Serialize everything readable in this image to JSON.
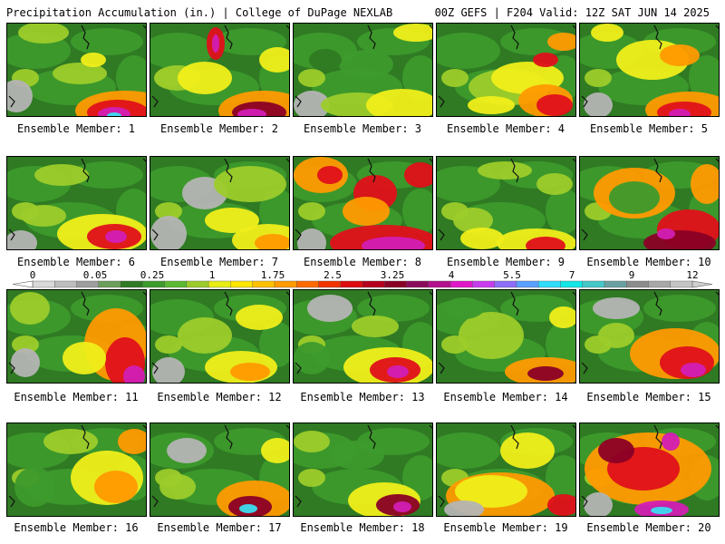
{
  "header": {
    "left_title": "Precipitation Accumulation (in.) | College of DuPage NEXLAB",
    "right_title": "00Z GEFS | F204 Valid: 12Z SAT JUN 14 2025"
  },
  "members": [
    {
      "label": "Ensemble Member: 1"
    },
    {
      "label": "Ensemble Member: 2"
    },
    {
      "label": "Ensemble Member: 3"
    },
    {
      "label": "Ensemble Member: 4"
    },
    {
      "label": "Ensemble Member: 5"
    },
    {
      "label": "Ensemble Member: 6"
    },
    {
      "label": "Ensemble Member: 7"
    },
    {
      "label": "Ensemble Member: 8"
    },
    {
      "label": "Ensemble Member: 9"
    },
    {
      "label": "Ensemble Member: 10"
    },
    {
      "label": "Ensemble Member: 11"
    },
    {
      "label": "Ensemble Member: 12"
    },
    {
      "label": "Ensemble Member: 13"
    },
    {
      "label": "Ensemble Member: 14"
    },
    {
      "label": "Ensemble Member: 15"
    },
    {
      "label": "Ensemble Member: 16"
    },
    {
      "label": "Ensemble Member: 17"
    },
    {
      "label": "Ensemble Member: 18"
    },
    {
      "label": "Ensemble Member: 19"
    },
    {
      "label": "Ensemble Member: 20"
    }
  ],
  "colorbar": {
    "labels": [
      "0",
      "0.05",
      "0.25",
      "1",
      "1.75",
      "2.5",
      "3.25",
      "4",
      "5.5",
      "7",
      "9",
      "12"
    ],
    "colors": [
      "#d9d9d9",
      "#bdbdbd",
      "#9e9e9e",
      "#6b9e5a",
      "#2f7a23",
      "#3d9a2c",
      "#5cb832",
      "#9ccc2a",
      "#e8ee14",
      "#ffe600",
      "#ffc000",
      "#ff9a00",
      "#ff6a00",
      "#f23200",
      "#dd0a10",
      "#b4001e",
      "#8a0026",
      "#8c0a5a",
      "#b4108c",
      "#e018c8",
      "#c83cf0",
      "#8c6ef8",
      "#5aa0ff",
      "#30dcff",
      "#12e6e6",
      "#44c8c8",
      "#6aa0a0",
      "#8c8c8c",
      "#a8a8a8",
      "#c4c4c4"
    ]
  },
  "palette": {
    "gray": "#b4b4b4",
    "dark_green": "#2f7a23",
    "green": "#3d9a2c",
    "yellow_green": "#9ccc2a",
    "yellow": "#f0ee1a",
    "orange": "#ff9a00",
    "red": "#e0101a",
    "maroon": "#8a0026",
    "magenta": "#d21eb4",
    "cyan": "#3cdcf0"
  }
}
